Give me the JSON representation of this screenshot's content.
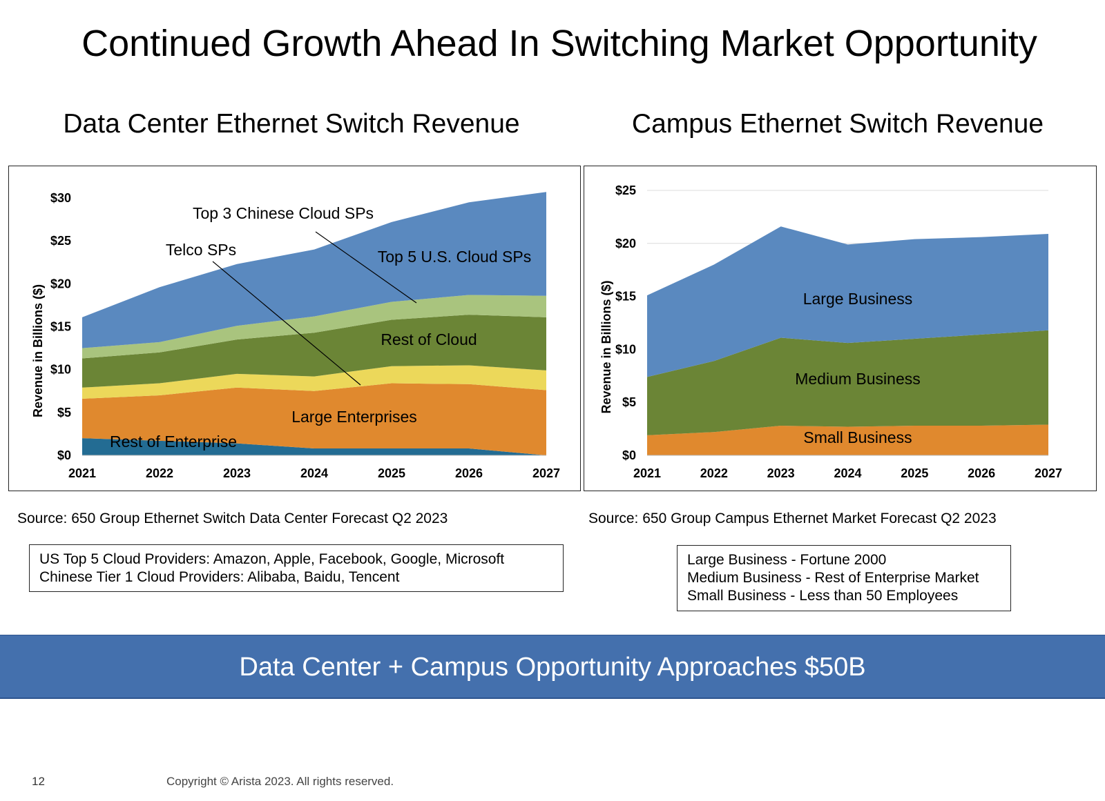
{
  "slide": {
    "title": "Continued Growth Ahead In Switching Market Opportunity",
    "page_number": "12",
    "copyright": "Copyright © Arista 2023. All rights reserved.",
    "banner": "Data Center + Campus Opportunity Approaches $50B"
  },
  "colors": {
    "banner": "#4470ad",
    "cloud_blue": "#5a89bf",
    "chinese_green": "#a9c47e",
    "rest_cloud": "#6b8536",
    "telco_yellow": "#ecd85a",
    "large_ent_orange": "#e0892e",
    "rest_ent_blue": "#236c93"
  },
  "left_panel": {
    "heading": "Data Center Ethernet Switch Revenue",
    "source": "Source: 650 Group Ethernet Switch Data Center Forecast Q2 2023",
    "notes": [
      "US Top 5 Cloud Providers: Amazon, Apple, Facebook, Google, Microsoft",
      "Chinese Tier 1 Cloud Providers: Alibaba, Baidu, Tencent"
    ]
  },
  "right_panel": {
    "heading": "Campus Ethernet Switch Revenue",
    "source": "Source: 650 Group Campus Ethernet Market Forecast Q2 2023",
    "notes": [
      "Large Business - Fortune 2000",
      "Medium Business - Rest of Enterprise Market",
      "Small Business - Less than 50 Employees"
    ]
  },
  "chart_data": [
    {
      "type": "area",
      "stacked": true,
      "x": [
        "2021",
        "2022",
        "2023",
        "2024",
        "2025",
        "2026",
        "2027"
      ],
      "ylabel": "Revenue in Billions ($)",
      "ylim": [
        0,
        30
      ],
      "yticks": [
        "$0",
        "$5",
        "$10",
        "$15",
        "$20",
        "$25",
        "$30"
      ],
      "grid": false,
      "series": [
        {
          "name": "Rest of Enterprise",
          "values": [
            2.0,
            1.7,
            1.4,
            0.8,
            0.8,
            0.8,
            0.0
          ],
          "color": "#236c93"
        },
        {
          "name": "Large Enterprises",
          "values": [
            4.6,
            5.3,
            6.5,
            6.7,
            7.6,
            7.5,
            7.6
          ],
          "color": "#e0892e"
        },
        {
          "name": "Telco SPs",
          "values": [
            1.3,
            1.4,
            1.6,
            1.7,
            2.0,
            2.2,
            2.3
          ],
          "color": "#ecd85a"
        },
        {
          "name": "Rest of Cloud",
          "values": [
            3.4,
            3.6,
            4.0,
            5.1,
            5.4,
            5.9,
            6.2
          ],
          "color": "#6b8536"
        },
        {
          "name": "Top 3 Chinese Cloud SPs",
          "values": [
            1.2,
            1.2,
            1.6,
            1.9,
            2.1,
            2.3,
            2.5
          ],
          "color": "#a9c47e"
        },
        {
          "name": "Top 5 U.S. Cloud SPs",
          "values": [
            3.6,
            6.4,
            7.2,
            7.8,
            9.3,
            10.8,
            12.1
          ],
          "color": "#5a89bf"
        }
      ],
      "annotations": [
        "Top 3 Chinese Cloud SPs",
        "Telco SPs",
        "Top 5 U.S. Cloud SPs",
        "Rest of Cloud",
        "Large Enterprises",
        "Rest of Enterprise"
      ]
    },
    {
      "type": "area",
      "stacked": true,
      "x": [
        "2021",
        "2022",
        "2023",
        "2024",
        "2025",
        "2026",
        "2027"
      ],
      "ylabel": "Revenue in Billions ($)",
      "ylim": [
        0,
        25
      ],
      "yticks": [
        "$0",
        "$5",
        "$10",
        "$15",
        "$20",
        "$25"
      ],
      "grid": true,
      "series": [
        {
          "name": "Small Business",
          "values": [
            1.9,
            2.2,
            2.8,
            2.7,
            2.8,
            2.8,
            2.9
          ],
          "color": "#e0892e"
        },
        {
          "name": "Medium Business",
          "values": [
            5.5,
            6.7,
            8.3,
            7.9,
            8.2,
            8.6,
            8.9
          ],
          "color": "#6b8536"
        },
        {
          "name": "Large Business",
          "values": [
            7.7,
            9.1,
            10.5,
            9.3,
            9.4,
            9.2,
            9.1
          ],
          "color": "#5a89bf"
        }
      ],
      "annotations": [
        "Large Business",
        "Medium Business",
        "Small Business"
      ]
    }
  ]
}
